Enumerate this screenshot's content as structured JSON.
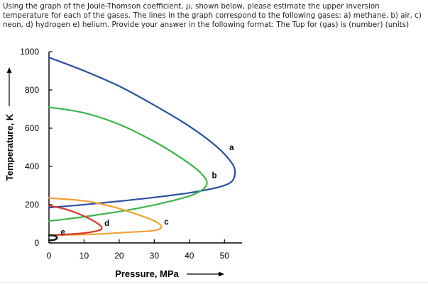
{
  "question": {
    "part1": "Using the graph of the Joule-Thomson coefficient, ",
    "mu": "μ",
    "part2": ", shown below, please estimate the upper inversion temperature for each of the gases. The lines in the graph correspond to the following gases: a) methane, b) air, c) neon, d) hydrogen e) helium. Provide your answer in the following format: The Tup for (gas) is (number) (units)"
  },
  "chart_data": {
    "type": "line",
    "title": "",
    "xlabel": "Pressure, MPa",
    "ylabel": "Temperature, K",
    "xlim": [
      0,
      55
    ],
    "ylim": [
      0,
      1000
    ],
    "xticks": [
      0,
      10,
      20,
      30,
      40,
      50
    ],
    "yticks": [
      0,
      200,
      400,
      600,
      800,
      1000
    ],
    "grid": false,
    "series": [
      {
        "name": "a",
        "color": "#2b4fa2",
        "points": [
          [
            0,
            970
          ],
          [
            10,
            900
          ],
          [
            20,
            820
          ],
          [
            30,
            720
          ],
          [
            40,
            610
          ],
          [
            48,
            500
          ],
          [
            52,
            420
          ],
          [
            53,
            370
          ],
          [
            52,
            320
          ],
          [
            48,
            290
          ],
          [
            40,
            262
          ],
          [
            30,
            238
          ],
          [
            20,
            218
          ],
          [
            10,
            200
          ],
          [
            0,
            185
          ]
        ]
      },
      {
        "name": "b",
        "color": "#3cb44b",
        "points": [
          [
            0,
            710
          ],
          [
            10,
            680
          ],
          [
            20,
            620
          ],
          [
            30,
            530
          ],
          [
            38,
            440
          ],
          [
            43,
            370
          ],
          [
            45,
            310
          ],
          [
            42,
            260
          ],
          [
            35,
            220
          ],
          [
            25,
            180
          ],
          [
            15,
            150
          ],
          [
            5,
            125
          ],
          [
            0,
            115
          ]
        ]
      },
      {
        "name": "c",
        "color": "#f0a030",
        "points": [
          [
            0,
            235
          ],
          [
            10,
            220
          ],
          [
            18,
            190
          ],
          [
            25,
            150
          ],
          [
            30,
            115
          ],
          [
            32,
            85
          ],
          [
            30,
            65
          ],
          [
            22,
            55
          ],
          [
            12,
            45
          ],
          [
            0,
            40
          ]
        ]
      },
      {
        "name": "d",
        "color": "#d63a2a",
        "points": [
          [
            0,
            195
          ],
          [
            5,
            175
          ],
          [
            10,
            140
          ],
          [
            14,
            100
          ],
          [
            15,
            75
          ],
          [
            13,
            60
          ],
          [
            8,
            48
          ],
          [
            3,
            43
          ],
          [
            0,
            40
          ]
        ]
      },
      {
        "name": "e",
        "color": "#1a1a1a",
        "points": [
          [
            0,
            40
          ],
          [
            1.5,
            38
          ],
          [
            2.3,
            28
          ],
          [
            1.8,
            18
          ],
          [
            0.8,
            14
          ],
          [
            0,
            14
          ]
        ]
      }
    ]
  }
}
